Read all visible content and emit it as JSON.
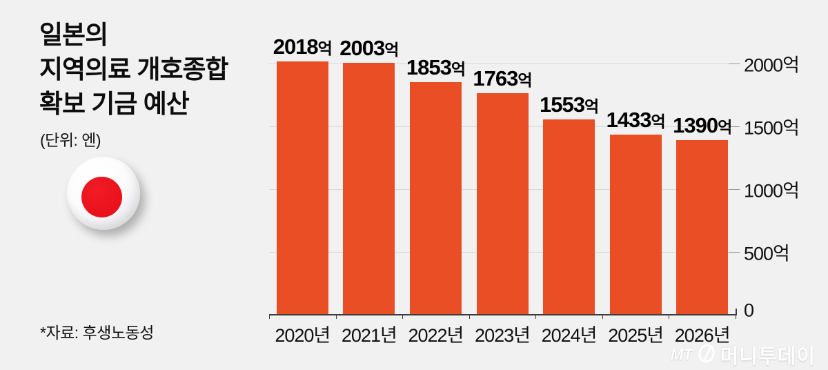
{
  "header": {
    "title": "일본의\n지역의료 개호종합\n확보 기금 예산",
    "unit": "(단위: 엔)"
  },
  "flag_icon": {
    "name": "japan-flag-icon",
    "ring_color": "#ffffff",
    "dot_color": "#ea111b"
  },
  "chart_data": {
    "type": "bar",
    "title": "일본의 지역의료 개호종합 확보 기금 예산",
    "unit": "(단위: 엔)",
    "categories": [
      "2020년",
      "2021년",
      "2022년",
      "2023년",
      "2024년",
      "2025년",
      "2026년"
    ],
    "values": [
      2018,
      2003,
      1853,
      1763,
      1553,
      1433,
      1390
    ],
    "value_suffix": "억",
    "bar_labels": [
      "2018억",
      "2003억",
      "1853억",
      "1763억",
      "1553억",
      "1433억",
      "1390억"
    ],
    "ylim": [
      0,
      2000
    ],
    "y_ticks": [
      0,
      500,
      1000,
      1500,
      2000
    ],
    "y_tick_labels": [
      "0",
      "500억",
      "1000억",
      "1500억",
      "2000억"
    ],
    "axis_side": "right",
    "grid": true,
    "bar_color": "#e94e24",
    "gridline_color": "#d9d9d9",
    "background_color": "#f2f1f2"
  },
  "footer": {
    "source": "*자료: 후생노동성",
    "logo": {
      "mt": "MT",
      "wordmark": "머니투데이"
    }
  }
}
